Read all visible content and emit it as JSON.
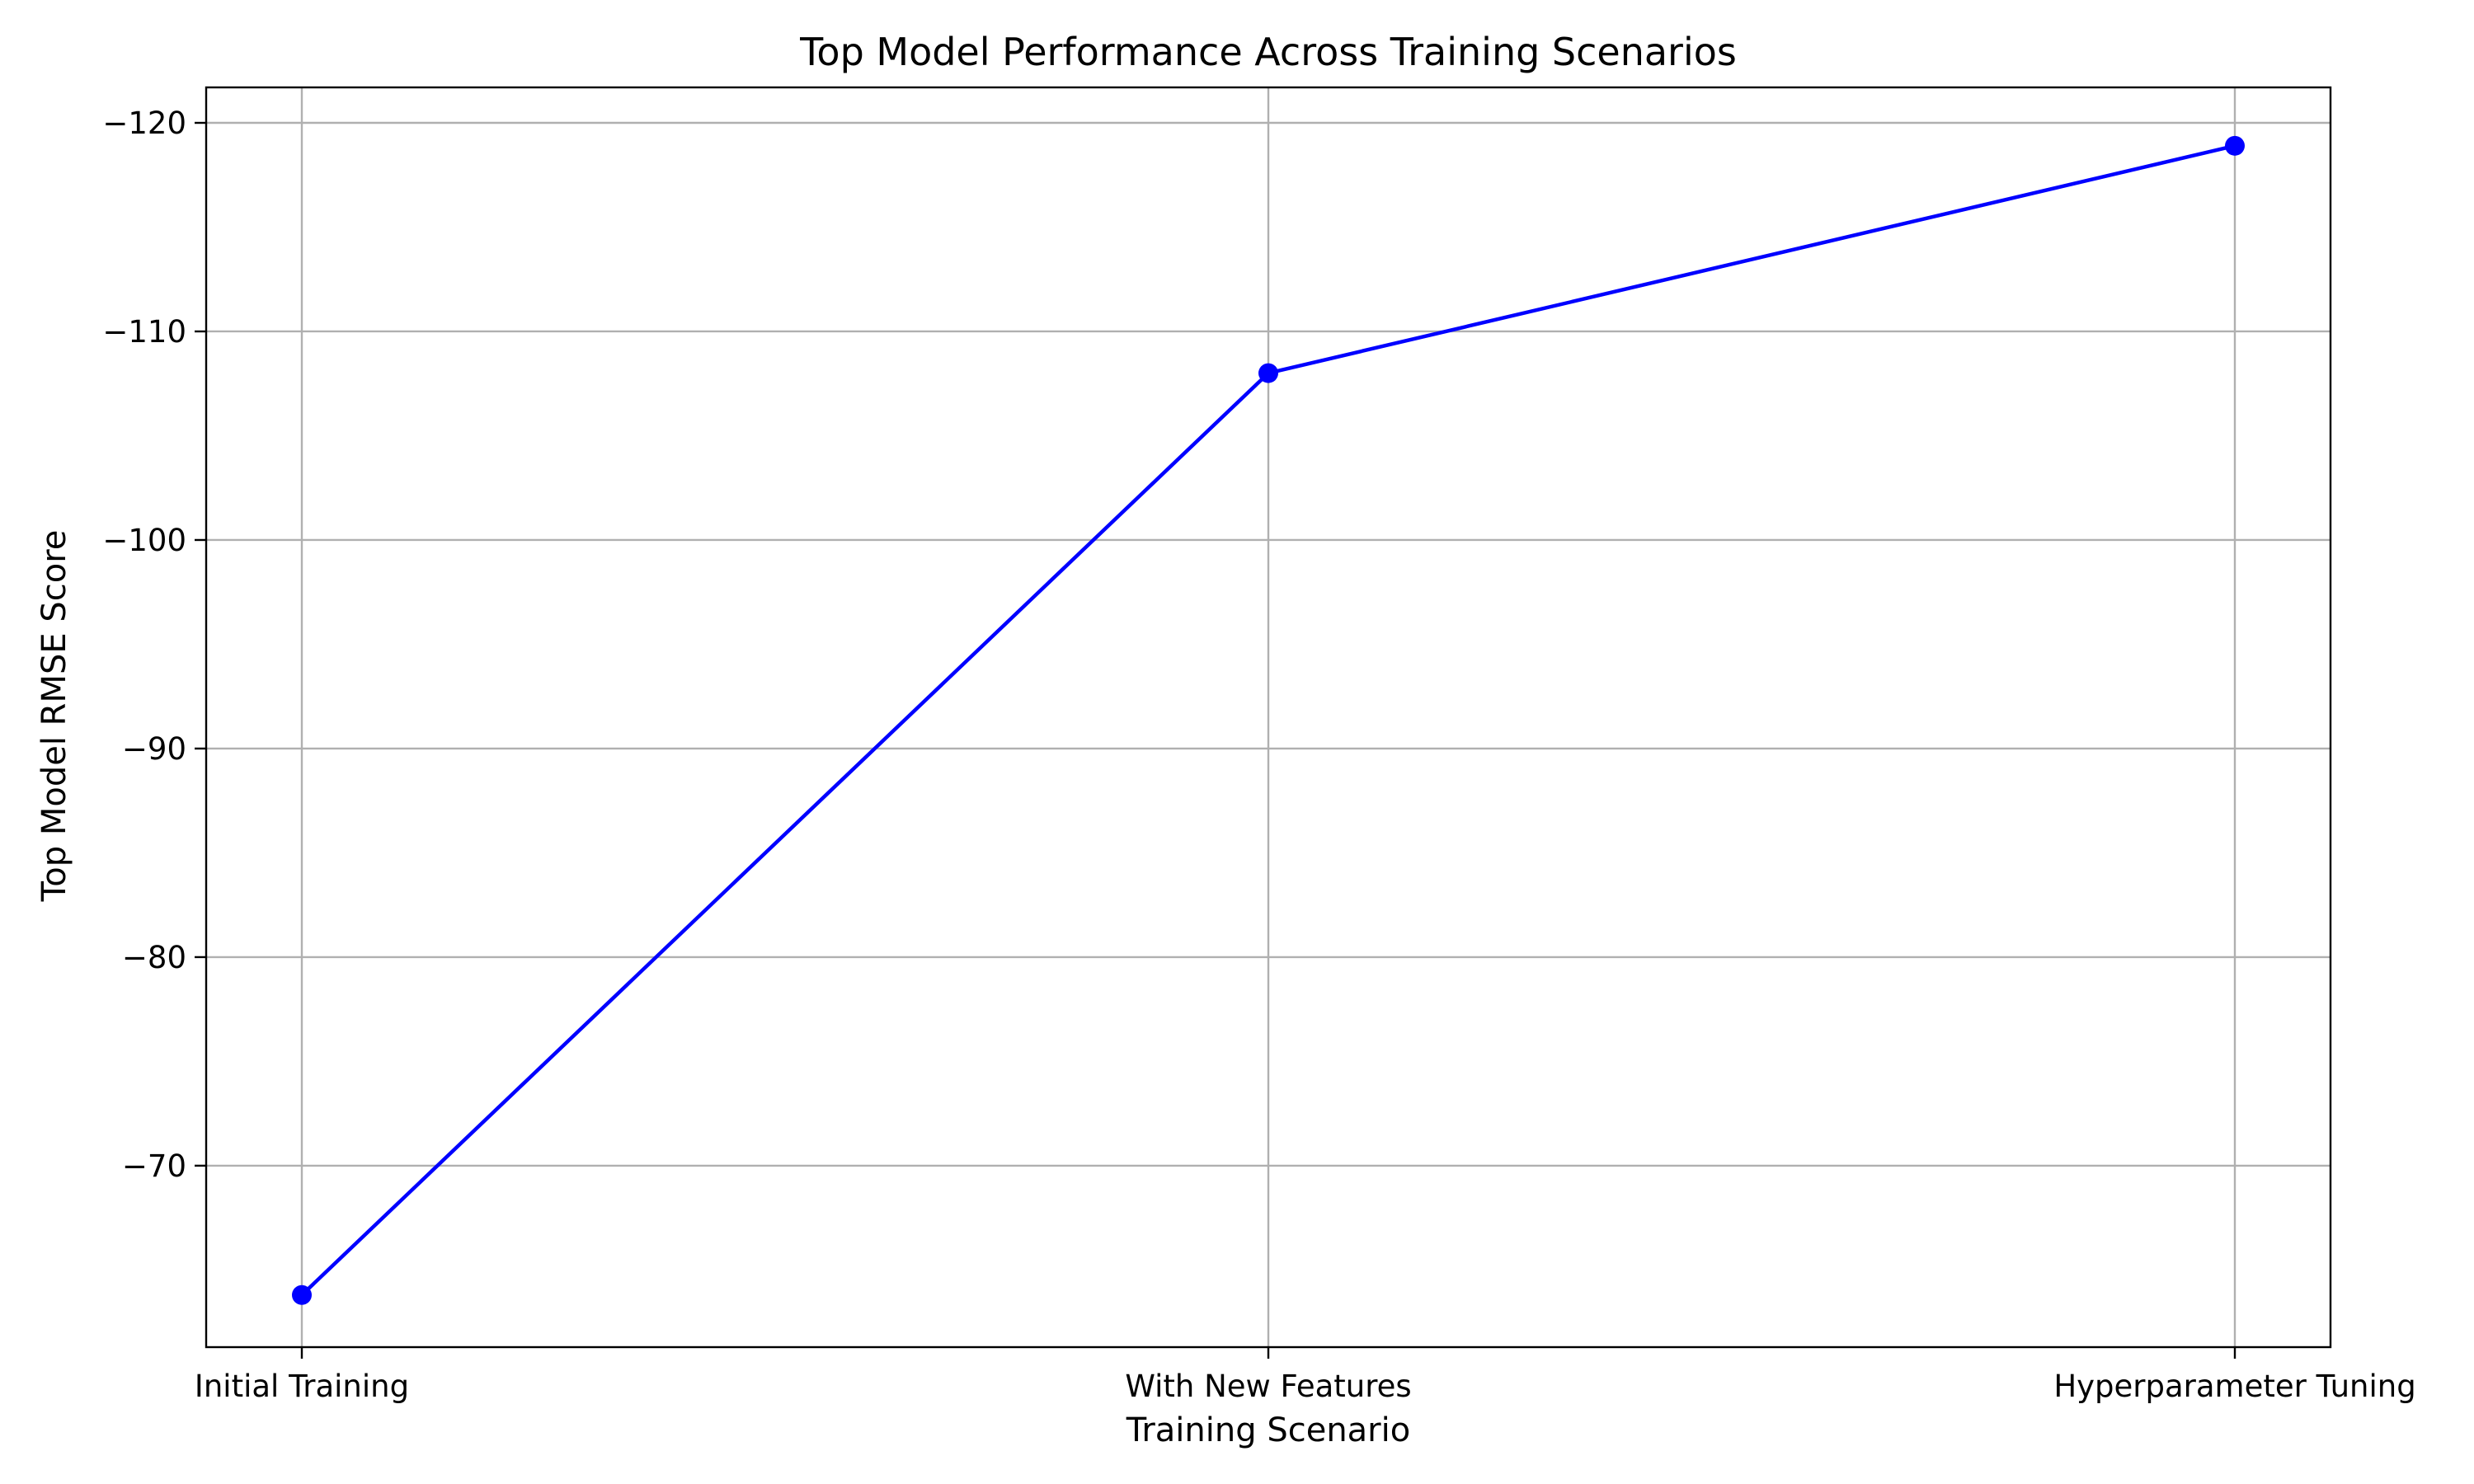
{
  "colors": {
    "line": "#0000ff",
    "marker": "#0000ff",
    "grid": "#b0b0b0",
    "axes": "#000000",
    "background": "#ffffff"
  },
  "chart_data": {
    "type": "line",
    "title": "Top Model Performance Across Training Scenarios",
    "xlabel": "Training Scenario",
    "ylabel": "Top Model RMSE Score",
    "categories": [
      "Initial Training",
      "With New Features",
      "Hyperparameter Tuning"
    ],
    "series": [
      {
        "values": [
          -63.8,
          -108.0,
          -118.9
        ],
        "color": "#0000ff",
        "marker": "circle"
      }
    ],
    "ylim": [
      -61.3,
      -121.7
    ],
    "y_inverted": true,
    "yticks": [
      -70,
      -80,
      -90,
      -100,
      -110,
      -120
    ],
    "ytick_labels": [
      "−70",
      "−80",
      "−90",
      "−100",
      "−110",
      "−120"
    ],
    "grid": true,
    "legend": "none"
  }
}
